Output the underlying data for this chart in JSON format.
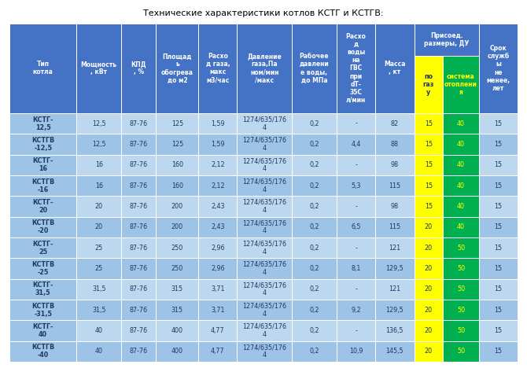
{
  "title": "Технические характеристики котлов КСТГ и КСТГВ:",
  "header_bg": "#4472C4",
  "header_text": "#FFFFFF",
  "row_bg_odd": "#BDD7EE",
  "row_bg_even": "#9DC3E6",
  "col_yellow": "#FFFF00",
  "col_green": "#00B050",
  "col_headers_top": [
    "Тип\nкотла",
    "Мощность\n, кВт",
    "КПД\n, %",
    "Площад\nь\nобогрева\nдо м2",
    "Расхо\nд газа,\nмакс\nм3/час",
    "Давление\nгаза,Па\nном/мин\n/макс",
    "Рабочее\nдавлени\nе воды,\nдо МПа",
    "Расхо\nд\nводы\nна\nГВС\nпри\ndТ-\n35С\nл/мин",
    "Масса\n, кт",
    "Присоед.\nразмеры, ДУ",
    "",
    "Срок\nслужб\nы\nне\nменее,\nлет"
  ],
  "sub_gas": "по\nгаз\nу",
  "sub_heat": "система\nотоплени\nя",
  "rows": [
    [
      "КСТГ-\n12,5",
      "12,5",
      "87-76",
      "125",
      "1,59",
      "1274/635/176\n4",
      "0,2",
      "-",
      "82",
      "15",
      "40",
      "15"
    ],
    [
      "КСТГВ\n-12,5",
      "12,5",
      "87-76",
      "125",
      "1,59",
      "1274/635/176\n4",
      "0,2",
      "4,4",
      "88",
      "15",
      "40",
      "15"
    ],
    [
      "КСТГ-\n16",
      "16",
      "87-76",
      "160",
      "2,12",
      "1274/635/176\n4",
      "0,2",
      "-",
      "98",
      "15",
      "40",
      "15"
    ],
    [
      "КСТГВ\n-16",
      "16",
      "87-76",
      "160",
      "2,12",
      "1274/635/176\n4",
      "0,2",
      "5,3",
      "115",
      "15",
      "40",
      "15"
    ],
    [
      "КСТГ-\n20",
      "20",
      "87-76",
      "200",
      "2,43",
      "1274/635/176\n4",
      "0,2",
      "-",
      "98",
      "15",
      "40",
      "15"
    ],
    [
      "КСТГВ\n-20",
      "20",
      "87-76",
      "200",
      "2,43",
      "1274/635/176\n4",
      "0,2",
      "6,5",
      "115",
      "20",
      "40",
      "15"
    ],
    [
      "КСТГ-\n25",
      "25",
      "87-76",
      "250",
      "2,96",
      "1274/635/176\n4",
      "0,2",
      "-",
      "121",
      "20",
      "50",
      "15"
    ],
    [
      "КСТГВ\n-25",
      "25",
      "87-76",
      "250",
      "2,96",
      "1274/635/176\n4",
      "0,2",
      "8,1",
      "129,5",
      "20",
      "50",
      "15"
    ],
    [
      "КСТГ-\n31,5",
      "31,5",
      "87-76",
      "315",
      "3,71",
      "1274/635/176\n4",
      "0,2",
      "-",
      "121",
      "20",
      "50",
      "15"
    ],
    [
      "КСТГВ\n-31,5",
      "31,5",
      "87-76",
      "315",
      "3,71",
      "1274/635/176\n4",
      "0,2",
      "9,2",
      "129,5",
      "20",
      "50",
      "15"
    ],
    [
      "КСТГ-\n40",
      "40",
      "87-76",
      "400",
      "4,77",
      "1274/635/176\n4",
      "0,2",
      "-",
      "136,5",
      "20",
      "50",
      "15"
    ],
    [
      "КСТГВ\n-40",
      "40",
      "87-76",
      "400",
      "4,77",
      "1274/635/176\n4",
      "0,2",
      "10,9",
      "145,5",
      "20",
      "50",
      "15"
    ]
  ],
  "col_widths_raw": [
    1.35,
    0.9,
    0.7,
    0.85,
    0.78,
    1.1,
    0.9,
    0.78,
    0.78,
    0.58,
    0.72,
    0.78
  ],
  "fig_width": 6.7,
  "fig_height": 4.68,
  "dpi": 100
}
